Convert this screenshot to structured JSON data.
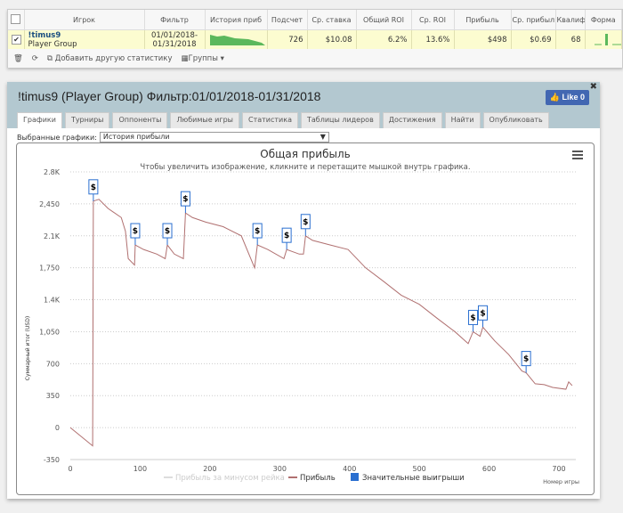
{
  "table": {
    "headers": [
      "Игрок",
      "Фильтр",
      "История приб",
      "Подсчет",
      "Ср. ставка",
      "Общий ROI",
      "Ср. ROI",
      "Прибыль",
      "Ср. прибыл",
      "Квалиф",
      "Форма"
    ],
    "row": {
      "player": "!timus9",
      "group": "Player Group",
      "filter_from": "01/01/2018-",
      "filter_to": "01/31/2018",
      "count": "726",
      "avg_stake": "$10.08",
      "total_roi": "6.2%",
      "avg_roi": "13.6%",
      "profit": "$498",
      "avg_profit": "$0.69",
      "qualif": "68"
    },
    "toolbar": {
      "add_stat": "Добавить другую статистику",
      "groups": "Группы"
    }
  },
  "panel": {
    "title": "!timus9 (Player Group) Фильтр:01/01/2018-01/31/2018",
    "like": "Like 0",
    "tabs": [
      "Графики",
      "Турниры",
      "Оппоненты",
      "Любимые игры",
      "Статистика",
      "Таблицы лидеров",
      "Достижения",
      "Найти",
      "Опубликовать"
    ],
    "selected_label": "Выбранные графики:",
    "selected_value": "История прибыли"
  },
  "chart_data": {
    "type": "line",
    "title": "Общая прибыль",
    "subtitle": "Чтобы увеличить изображение, кликните и перетащите мышкой внутрь графика.",
    "xlabel": "Номер игры",
    "ylabel": "Суммарный итог (USD)",
    "xlim": [
      0,
      700
    ],
    "ylim": [
      -350,
      2800
    ],
    "xticks": [
      0,
      100,
      200,
      300,
      400,
      500,
      600,
      700
    ],
    "yticks": [
      -350,
      0,
      350,
      700,
      1050,
      1400,
      1750,
      2100,
      2450,
      2800
    ],
    "ytick_labels": [
      "-350",
      "0",
      "350",
      "700",
      "1,050",
      "1.4K",
      "1,750",
      "2.1K",
      "2,450",
      "2.8K"
    ],
    "legend": [
      "Прибыль за минусом рейка",
      "Прибыль",
      "Значительные выигрыши"
    ],
    "line_color": "#b07070",
    "marker_color": "#2a6fd0",
    "series": [
      {
        "name": "Прибыль",
        "x": [
          0,
          32,
          33,
          41,
          54,
          73,
          79,
          83,
          92,
          93,
          105,
          124,
          136,
          139,
          149,
          162,
          165,
          175,
          194,
          219,
          245,
          264,
          268,
          283,
          306,
          310,
          328,
          334,
          337,
          347,
          372,
          398,
          423,
          449,
          474,
          500,
          525,
          551,
          570,
          577,
          587,
          591,
          608,
          628,
          647,
          653,
          666,
          679,
          691,
          710,
          714,
          719
        ],
        "y": [
          0,
          -200,
          2480,
          2500,
          2400,
          2300,
          2150,
          1850,
          1780,
          2000,
          1950,
          1900,
          1850,
          2000,
          1900,
          1850,
          2350,
          2300,
          2250,
          2200,
          2100,
          1750,
          2000,
          1950,
          1850,
          1950,
          1900,
          1900,
          2100,
          2050,
          2000,
          1950,
          1750,
          1600,
          1450,
          1350,
          1200,
          1050,
          920,
          1050,
          1000,
          1100,
          950,
          800,
          620,
          600,
          480,
          470,
          440,
          420,
          500,
          460
        ]
      }
    ],
    "big_wins": [
      33,
      93,
      139,
      165,
      268,
      310,
      337,
      577,
      591,
      653
    ]
  }
}
